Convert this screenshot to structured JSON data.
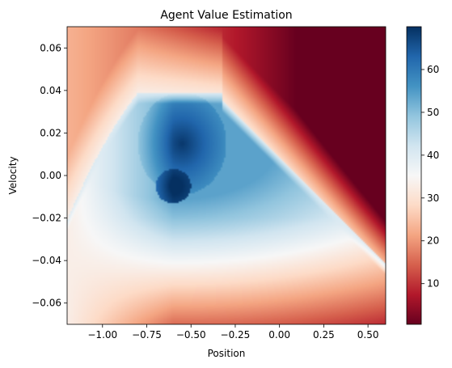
{
  "chart_data": {
    "type": "heatmap",
    "title": "Agent Value Estimation",
    "xlabel": "Position",
    "ylabel": "Velocity",
    "xlim": [
      -1.2,
      0.6
    ],
    "ylim": [
      -0.07,
      0.07
    ],
    "x_ticks": [
      {
        "value": -1.0,
        "label": "−1.00"
      },
      {
        "value": -0.75,
        "label": "−0.75"
      },
      {
        "value": -0.5,
        "label": "−0.50"
      },
      {
        "value": -0.25,
        "label": "−0.25"
      },
      {
        "value": 0.0,
        "label": "0.00"
      },
      {
        "value": 0.25,
        "label": "0.25"
      },
      {
        "value": 0.5,
        "label": "0.50"
      }
    ],
    "y_ticks": [
      {
        "value": 0.06,
        "label": "0.06"
      },
      {
        "value": 0.04,
        "label": "0.04"
      },
      {
        "value": 0.02,
        "label": "0.02"
      },
      {
        "value": 0.0,
        "label": "0.00"
      },
      {
        "value": -0.02,
        "label": "−0.02"
      },
      {
        "value": -0.04,
        "label": "−0.04"
      },
      {
        "value": -0.06,
        "label": "−0.06"
      }
    ],
    "colorbar": {
      "colormap": "RdBu",
      "range": [
        0.5,
        70
      ],
      "ticks": [
        {
          "value": 10,
          "label": "10"
        },
        {
          "value": 20,
          "label": "20"
        },
        {
          "value": 30,
          "label": "30"
        },
        {
          "value": 40,
          "label": "40"
        },
        {
          "value": 50,
          "label": "50"
        },
        {
          "value": 60,
          "label": "60"
        }
      ]
    },
    "grid": false
  }
}
